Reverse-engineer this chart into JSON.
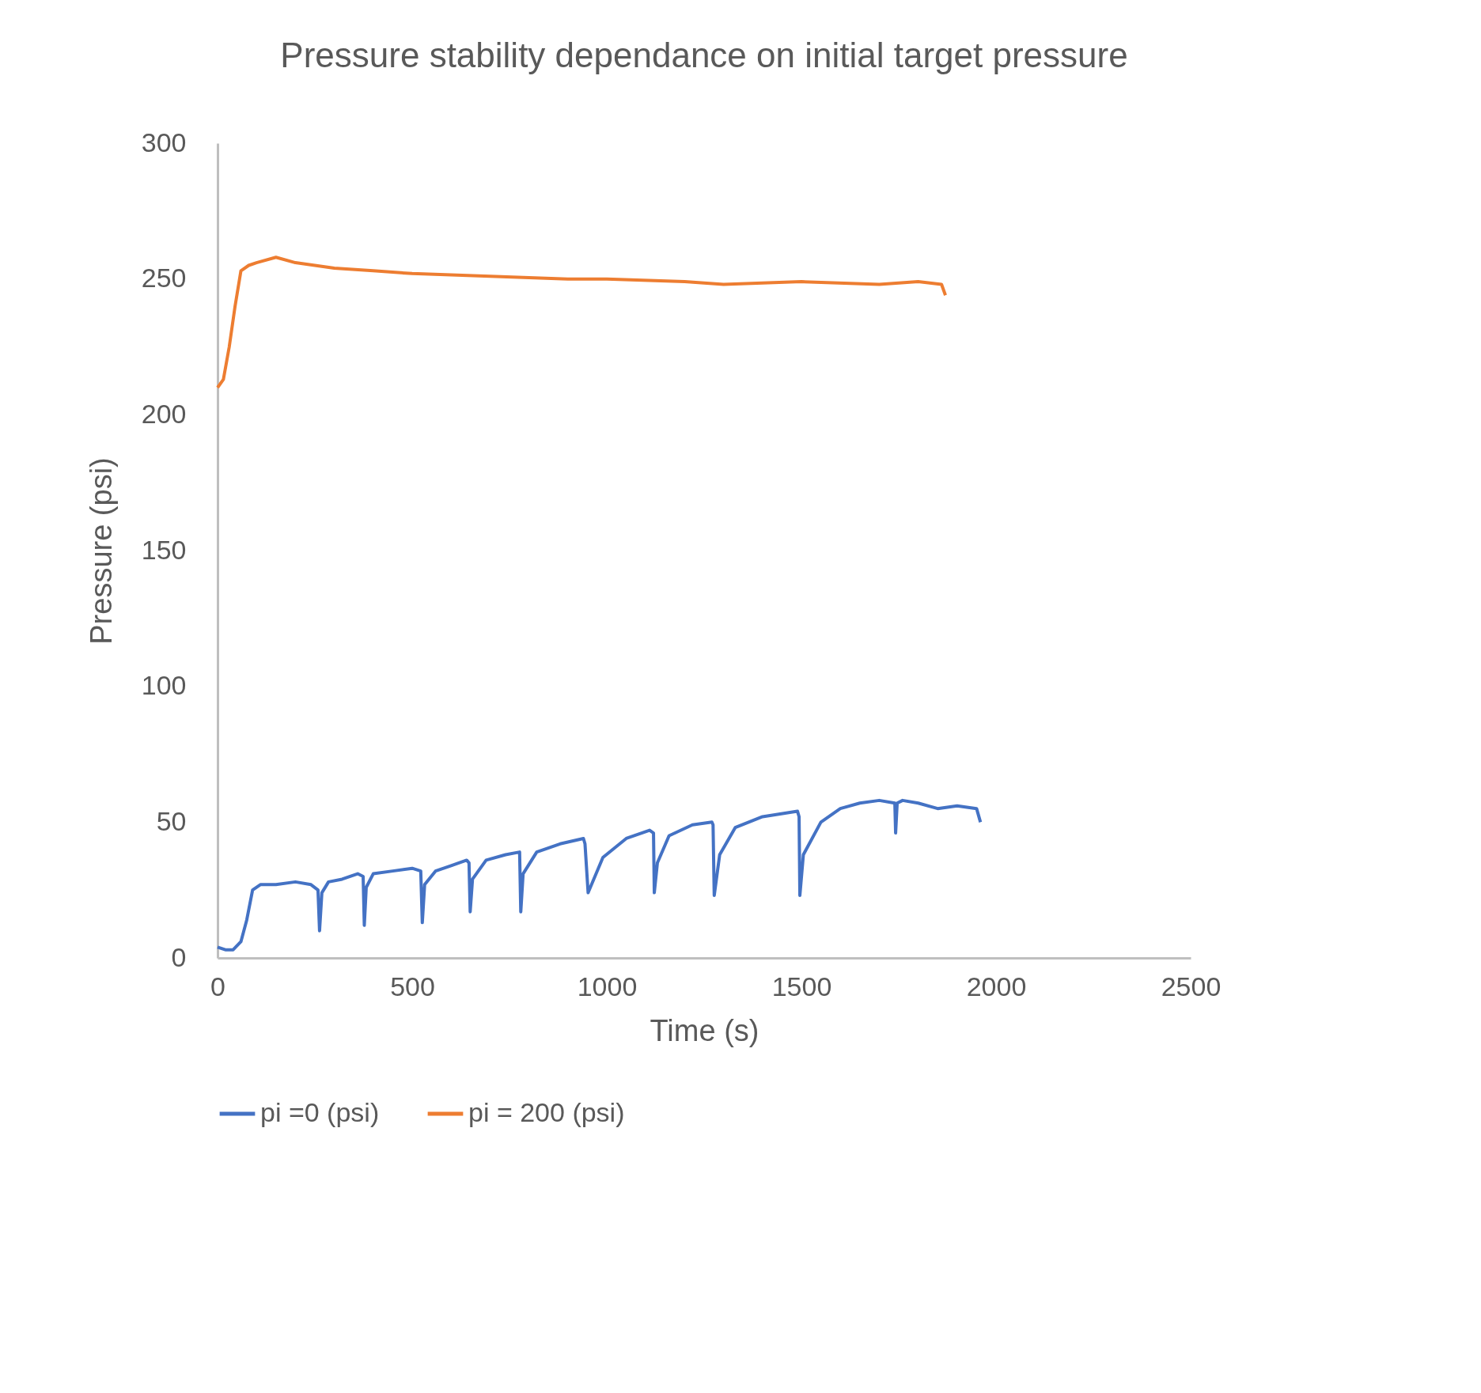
{
  "chart_data": {
    "type": "line",
    "title": "Pressure stability dependance on initial target pressure",
    "xlabel": "Time (s)",
    "ylabel": "Pressure (psi)",
    "xlim": [
      0,
      2500
    ],
    "xticks": [
      0,
      500,
      1000,
      1500,
      2000,
      2500
    ],
    "ylim": [
      0,
      300
    ],
    "yticks": [
      0,
      50,
      100,
      150,
      200,
      250,
      300
    ],
    "grid": false,
    "legend": "bottom",
    "marker": "none",
    "line_style": "solid",
    "series": [
      {
        "name": "pi =0 (psi)",
        "color": "#4472c4",
        "x": [
          0,
          20,
          40,
          60,
          75,
          90,
          110,
          150,
          200,
          240,
          258,
          262,
          268,
          285,
          320,
          360,
          374,
          377,
          382,
          400,
          450,
          500,
          522,
          526,
          532,
          560,
          600,
          640,
          646,
          649,
          655,
          690,
          740,
          776,
          779,
          785,
          820,
          880,
          940,
          944,
          952,
          990,
          1050,
          1110,
          1120,
          1122,
          1130,
          1160,
          1220,
          1270,
          1273,
          1276,
          1290,
          1330,
          1400,
          1490,
          1494,
          1496,
          1505,
          1550,
          1600,
          1650,
          1700,
          1740,
          1742,
          1746,
          1760,
          1800,
          1850,
          1900,
          1950,
          1960
        ],
        "values": [
          4,
          3,
          3,
          6,
          14,
          25,
          27,
          27,
          28,
          27,
          25,
          10,
          24,
          28,
          29,
          31,
          30,
          12,
          26,
          31,
          32,
          33,
          32,
          13,
          27,
          32,
          34,
          36,
          35,
          17,
          29,
          36,
          38,
          39,
          17,
          31,
          39,
          42,
          44,
          42,
          24,
          37,
          44,
          47,
          46,
          24,
          35,
          45,
          49,
          50,
          49,
          23,
          38,
          48,
          52,
          54,
          52,
          23,
          38,
          50,
          55,
          57,
          58,
          57,
          46,
          57,
          58,
          57,
          55,
          56,
          55,
          50
        ]
      },
      {
        "name": "pi = 200 (psi)",
        "color": "#ed7d31",
        "x": [
          0,
          15,
          30,
          45,
          60,
          80,
          100,
          150,
          200,
          300,
          400,
          500,
          700,
          900,
          1000,
          1200,
          1300,
          1500,
          1700,
          1800,
          1860,
          1870
        ],
        "values": [
          210,
          213,
          225,
          240,
          253,
          255,
          256,
          258,
          256,
          254,
          253,
          252,
          251,
          250,
          250,
          249,
          248,
          249,
          248,
          249,
          248,
          244
        ]
      }
    ]
  }
}
